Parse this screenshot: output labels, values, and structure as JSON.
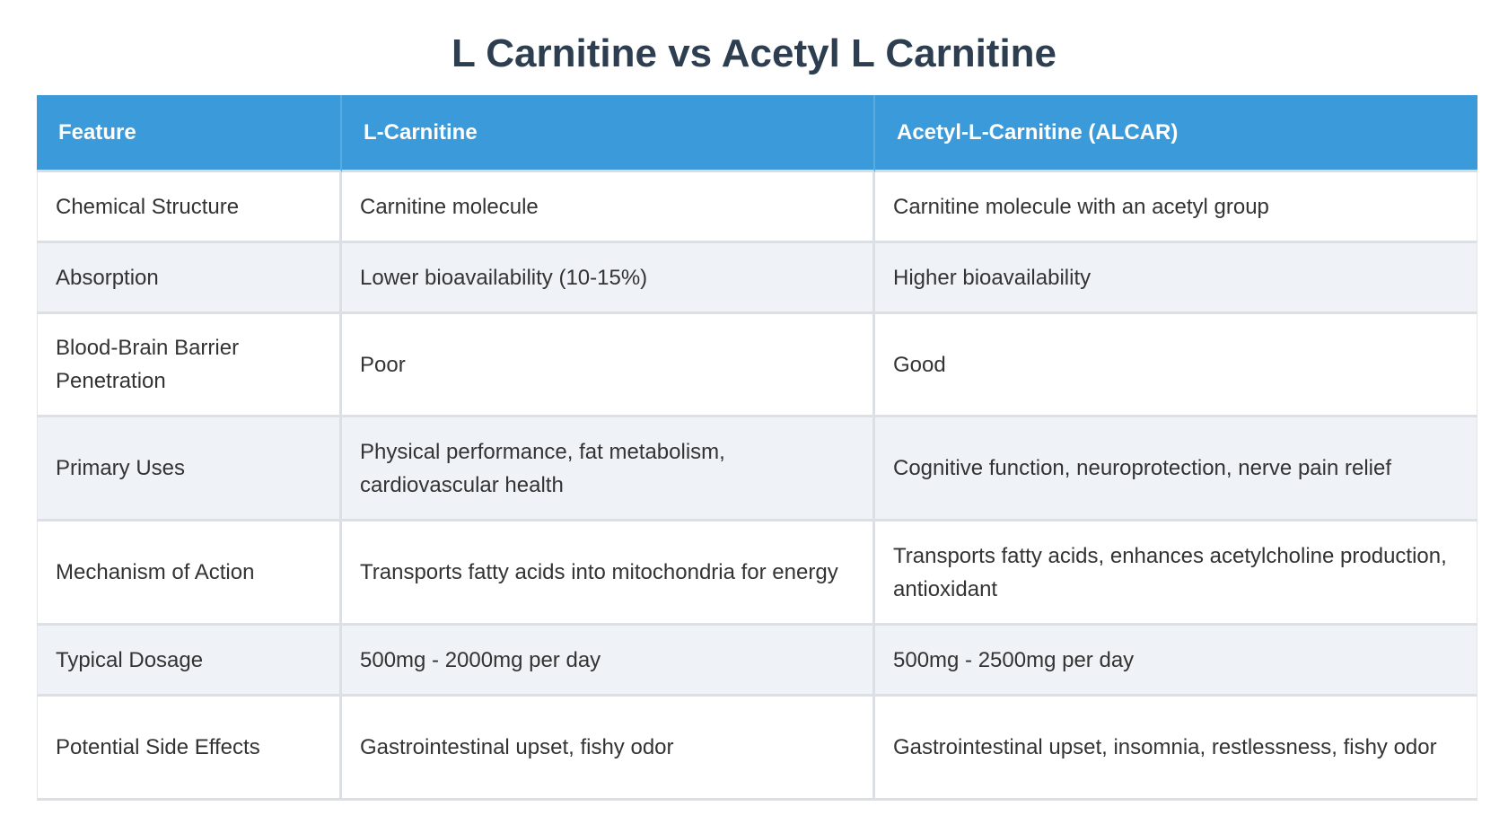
{
  "title": "L Carnitine vs Acetyl L Carnitine",
  "table": {
    "headers": [
      "Feature",
      "L-Carnitine",
      "Acetyl-L-Carnitine (ALCAR)"
    ],
    "rows": [
      [
        "Chemical Structure",
        "Carnitine molecule",
        "Carnitine molecule with an acetyl group"
      ],
      [
        "Absorption",
        "Lower bioavailability (10-15%)",
        "Higher bioavailability"
      ],
      [
        "Blood-Brain Barrier Penetration",
        "Poor",
        "Good"
      ],
      [
        "Primary Uses",
        "Physical performance, fat metabolism, cardiovascular health",
        "Cognitive function, neuroprotection, nerve pain relief"
      ],
      [
        "Mechanism of Action",
        "Transports fatty acids into mitochondria for energy",
        "Transports fatty acids, enhances acetylcholine production, antioxidant"
      ],
      [
        "Typical Dosage",
        "500mg - 2000mg per day",
        "500mg - 2500mg per day"
      ],
      [
        "Potential Side Effects",
        "Gastrointestinal upset, fishy odor",
        "Gastrointestinal upset, insomnia, restlessness, fishy odor"
      ]
    ]
  },
  "colors": {
    "header_bg": "#3b9ad9",
    "title_color": "#2c3e50",
    "stripe_bg": "#eff3f8"
  }
}
